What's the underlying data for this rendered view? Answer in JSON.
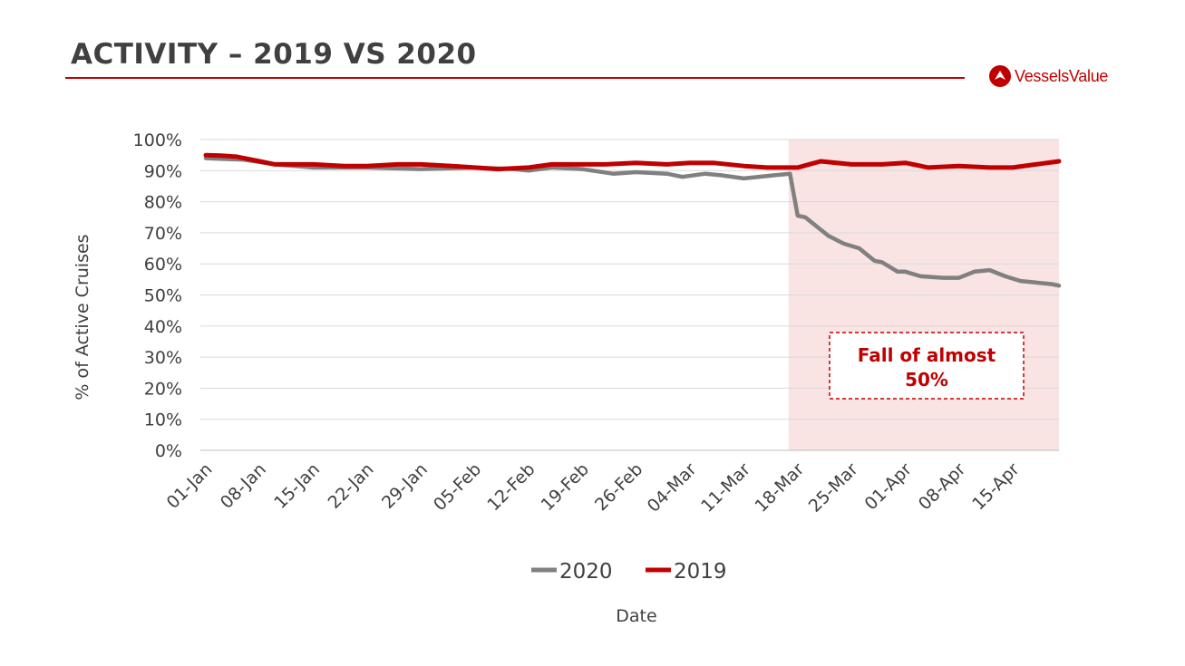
{
  "header": {
    "title": "ACTIVITY – 2019 VS 2020",
    "logo_text": "VesselsValue",
    "accent_color": "#c00000"
  },
  "chart_data": {
    "type": "line",
    "title": "",
    "xlabel": "Date",
    "ylabel": "% of Active Cruises",
    "ylim": [
      0,
      100
    ],
    "yticks": [
      "0%",
      "10%",
      "20%",
      "30%",
      "40%",
      "50%",
      "60%",
      "70%",
      "80%",
      "90%",
      "100%"
    ],
    "x_tick_labels": [
      "01-Jan",
      "08-Jan",
      "15-Jan",
      "22-Jan",
      "29-Jan",
      "05-Feb",
      "12-Feb",
      "19-Feb",
      "26-Feb",
      "04-Mar",
      "11-Mar",
      "18-Mar",
      "25-Mar",
      "01-Apr",
      "08-Apr",
      "15-Apr"
    ],
    "x_start": "01-Jan",
    "x_end": "21-Apr",
    "grid": true,
    "legend_position": "bottom",
    "highlight_region": {
      "from": "18-Mar",
      "to": "21-Apr",
      "color": "#f9e3e3"
    },
    "annotation": {
      "lines": [
        "Fall of almost",
        "50%"
      ],
      "color": "#c00000"
    },
    "series": [
      {
        "name": "2020",
        "color": "#808080",
        "x": [
          "01-Jan",
          "06-Jan",
          "10-Jan",
          "15-Jan",
          "22-Jan",
          "29-Jan",
          "05-Feb",
          "10-Feb",
          "12-Feb",
          "15-Feb",
          "19-Feb",
          "23-Feb",
          "26-Feb",
          "01-Mar",
          "03-Mar",
          "06-Mar",
          "08-Mar",
          "11-Mar",
          "15-Mar",
          "17-Mar",
          "18-Mar",
          "19-Mar",
          "20-Mar",
          "22-Mar",
          "24-Mar",
          "26-Mar",
          "28-Mar",
          "29-Mar",
          "31-Mar",
          "01-Apr",
          "03-Apr",
          "06-Apr",
          "08-Apr",
          "10-Apr",
          "12-Apr",
          "14-Apr",
          "16-Apr",
          "18-Apr",
          "20-Apr",
          "21-Apr"
        ],
        "values": [
          94,
          93.5,
          92,
          91,
          91,
          90.5,
          91,
          90.5,
          90,
          91,
          90.5,
          89,
          89.5,
          89,
          88,
          89,
          88.5,
          87.5,
          88.5,
          89,
          75.5,
          75,
          73,
          69,
          66.5,
          65,
          61,
          60.5,
          57.5,
          57.5,
          56,
          55.5,
          55.5,
          57.5,
          58,
          56,
          54.5,
          54,
          53.5,
          53
        ]
      },
      {
        "name": "2019",
        "color": "#c00000",
        "x": [
          "01-Jan",
          "03-Jan",
          "05-Jan",
          "08-Jan",
          "10-Jan",
          "15-Jan",
          "19-Jan",
          "22-Jan",
          "26-Jan",
          "29-Jan",
          "02-Feb",
          "05-Feb",
          "08-Feb",
          "12-Feb",
          "15-Feb",
          "19-Feb",
          "22-Feb",
          "26-Feb",
          "01-Mar",
          "04-Mar",
          "07-Mar",
          "11-Mar",
          "14-Mar",
          "18-Mar",
          "21-Mar",
          "25-Mar",
          "29-Mar",
          "01-Apr",
          "04-Apr",
          "08-Apr",
          "12-Apr",
          "15-Apr",
          "18-Apr",
          "21-Apr"
        ],
        "values": [
          95,
          94.8,
          94.5,
          93,
          92,
          92,
          91.5,
          91.5,
          92,
          92,
          91.5,
          91,
          90.5,
          91,
          92,
          92,
          92,
          92.5,
          92,
          92.5,
          92.5,
          91.5,
          91,
          91,
          93,
          92,
          92,
          92.5,
          91,
          91.5,
          91,
          91,
          92,
          93
        ]
      }
    ]
  }
}
